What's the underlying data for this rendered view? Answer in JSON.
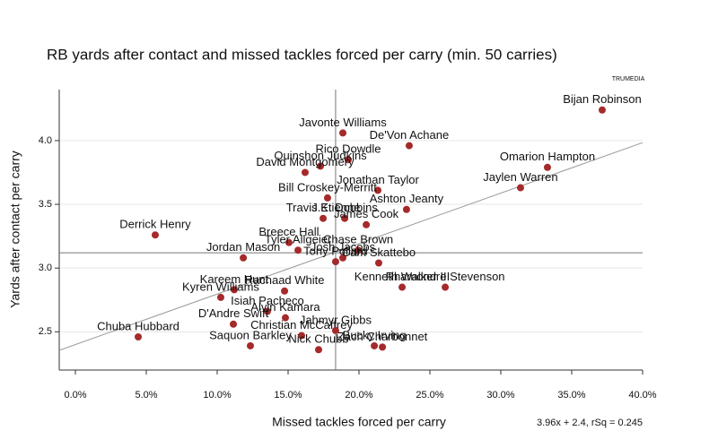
{
  "chart_data": {
    "type": "scatter",
    "title": "RB yards after contact and missed tackles forced per carry (min. 50 carries)",
    "logo": "TRUMEDIA",
    "x_label": "Missed tackles forced per carry",
    "y_label": "Yards after contact per carry",
    "trendline_label": "3.96x + 2.4, rSq = 0.245",
    "trendline": {
      "slope": 3.96,
      "intercept": 2.4
    },
    "reference_lines": {
      "x": 18.35,
      "y": 3.12
    },
    "color": "#a52a2a",
    "grid": true,
    "xlim": [
      -1.14,
      40
    ],
    "ylim": [
      2.2,
      4.4
    ],
    "xticks": [
      {
        "value": 0,
        "label": "0.0%"
      },
      {
        "value": 5,
        "label": "5.0%"
      },
      {
        "value": 10,
        "label": "10.0%"
      },
      {
        "value": 15,
        "label": "15.0%"
      },
      {
        "value": 20,
        "label": "20.0%"
      },
      {
        "value": 25,
        "label": "25.0%"
      },
      {
        "value": 30,
        "label": "30.0%"
      },
      {
        "value": 35,
        "label": "35.0%"
      },
      {
        "value": 40,
        "label": "40.0%"
      }
    ],
    "yticks": [
      2.5,
      {
        "value": 3,
        "label": "3.0"
      },
      3.5,
      {
        "value": 4,
        "label": "4.0"
      }
    ],
    "labels": [
      "Bijan Robinson",
      "Javonte Williams",
      "De'Von Achane",
      "Rico Dowdle",
      "Quinshon Judkins",
      "David Montgomery",
      "Omarion Hampton",
      "Jaylen Warren",
      "Jonathan Taylor",
      "Bill Croskey-Merritt",
      "Ashton Jeanty",
      "Travis Etienne",
      "J.K. Dobbins",
      "James Cook",
      "Derrick Henry",
      "Breece Hall",
      "Chase Brown",
      "Jordan Mason",
      "Tyler Allgeier",
      "Tony Pollard",
      "Josh Jacobs",
      "Cam Skattebo",
      "Kenneth Walker III",
      "Rhamondre Stevenson",
      "Kareem Hunt",
      "Rachaad White",
      "Kyren Williams",
      "Isiah Pacheco",
      "Alvin Kamara",
      "D'Andre Swift",
      "Christian McCaffrey",
      "Jahmyr Gibbs",
      "Saquon Barkley",
      "Nick Chubb",
      "Bucky Irving",
      "Zach Charbonnet",
      "Chuba Hubbard"
    ],
    "x": [
      37.15,
      18.86,
      23.54,
      19.24,
      17.28,
      16.2,
      33.29,
      31.39,
      21.33,
      17.78,
      23.35,
      17.47,
      18.99,
      20.51,
      5.63,
      15.06,
      19.94,
      11.84,
      15.7,
      18.35,
      18.86,
      21.39,
      23.04,
      26.08,
      11.2,
      14.75,
      10.25,
      13.54,
      14.81,
      11.14,
      15.95,
      18.35,
      12.34,
      17.15,
      21.08,
      21.65,
      4.43
    ],
    "y": [
      4.24,
      4.06,
      3.96,
      3.85,
      3.8,
      3.75,
      3.79,
      3.63,
      3.61,
      3.55,
      3.46,
      3.39,
      3.39,
      3.34,
      3.26,
      3.2,
      3.14,
      3.08,
      3.14,
      3.05,
      3.08,
      3.04,
      2.85,
      2.85,
      2.83,
      2.82,
      2.77,
      2.66,
      2.61,
      2.56,
      2.47,
      2.51,
      2.39,
      2.36,
      2.39,
      2.38,
      2.46
    ]
  }
}
